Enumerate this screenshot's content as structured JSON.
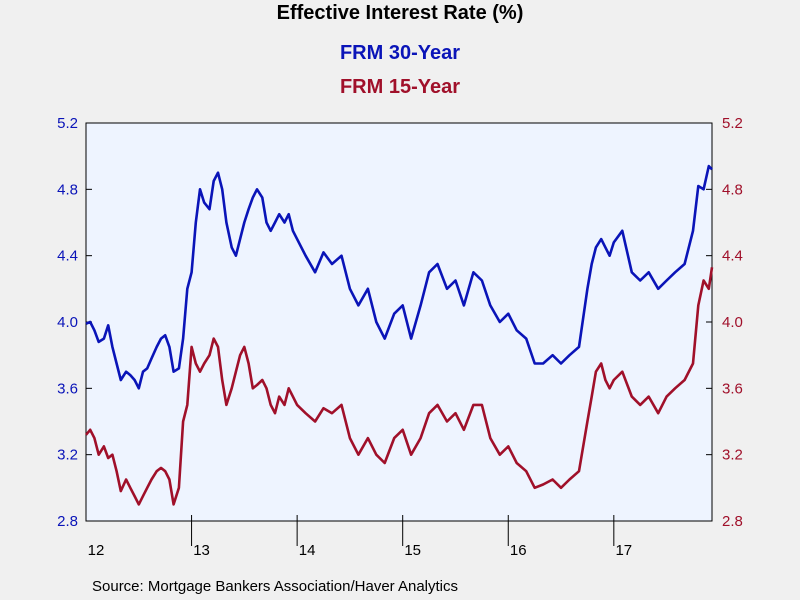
{
  "chart_data": {
    "type": "line",
    "title": "Effective Interest Rate (%)",
    "colors": {
      "background": "#f0f0f0",
      "plot_area": "#eef4ff",
      "series_1": "#0a14b8",
      "series_2": "#a0102a"
    },
    "ylim": [
      2.8,
      5.2
    ],
    "xlim": [
      2012.0,
      2017.93
    ],
    "y_ticks": [
      "2.8",
      "3.2",
      "3.6",
      "4.0",
      "4.4",
      "4.8",
      "5.2"
    ],
    "x_labels": [
      "12",
      "13",
      "14",
      "15",
      "16",
      "17"
    ],
    "grid": false,
    "legend": "title-area",
    "series": [
      {
        "name": "FRM 30-Year",
        "axis": "left",
        "x": [
          2012.0,
          2012.04,
          2012.08,
          2012.12,
          2012.17,
          2012.21,
          2012.25,
          2012.29,
          2012.33,
          2012.38,
          2012.42,
          2012.46,
          2012.5,
          2012.54,
          2012.58,
          2012.62,
          2012.67,
          2012.71,
          2012.75,
          2012.79,
          2012.83,
          2012.88,
          2012.92,
          2012.96,
          2013.0,
          2013.04,
          2013.08,
          2013.12,
          2013.17,
          2013.21,
          2013.25,
          2013.29,
          2013.33,
          2013.38,
          2013.42,
          2013.46,
          2013.5,
          2013.54,
          2013.58,
          2013.62,
          2013.67,
          2013.71,
          2013.75,
          2013.79,
          2013.83,
          2013.88,
          2013.92,
          2013.96,
          2014.0,
          2014.08,
          2014.17,
          2014.25,
          2014.33,
          2014.42,
          2014.5,
          2014.58,
          2014.67,
          2014.75,
          2014.83,
          2014.92,
          2015.0,
          2015.08,
          2015.17,
          2015.25,
          2015.33,
          2015.42,
          2015.5,
          2015.58,
          2015.67,
          2015.75,
          2015.83,
          2015.92,
          2016.0,
          2016.08,
          2016.17,
          2016.25,
          2016.33,
          2016.42,
          2016.5,
          2016.58,
          2016.67,
          2016.75,
          2016.79,
          2016.83,
          2016.88,
          2016.92,
          2016.96,
          2017.0,
          2017.08,
          2017.17,
          2017.25,
          2017.33,
          2017.42,
          2017.5,
          2017.58,
          2017.67,
          2017.75,
          2017.8,
          2017.85,
          2017.9,
          2017.93
        ],
        "values": [
          3.99,
          4.0,
          3.95,
          3.88,
          3.9,
          3.98,
          3.85,
          3.75,
          3.65,
          3.7,
          3.68,
          3.65,
          3.6,
          3.7,
          3.72,
          3.78,
          3.85,
          3.9,
          3.92,
          3.85,
          3.7,
          3.72,
          3.9,
          4.2,
          4.3,
          4.6,
          4.8,
          4.72,
          4.68,
          4.85,
          4.9,
          4.8,
          4.6,
          4.45,
          4.4,
          4.5,
          4.6,
          4.68,
          4.75,
          4.8,
          4.75,
          4.6,
          4.55,
          4.6,
          4.65,
          4.6,
          4.65,
          4.55,
          4.5,
          4.4,
          4.3,
          4.42,
          4.35,
          4.4,
          4.2,
          4.1,
          4.2,
          4.0,
          3.9,
          4.05,
          4.1,
          3.9,
          4.1,
          4.3,
          4.35,
          4.2,
          4.25,
          4.1,
          4.3,
          4.25,
          4.1,
          4.0,
          4.05,
          3.95,
          3.9,
          3.75,
          3.75,
          3.8,
          3.75,
          3.8,
          3.85,
          4.2,
          4.35,
          4.45,
          4.5,
          4.45,
          4.4,
          4.48,
          4.55,
          4.3,
          4.25,
          4.3,
          4.2,
          4.25,
          4.3,
          4.35,
          4.55,
          4.82,
          4.8,
          4.94,
          4.92
        ]
      },
      {
        "name": "FRM 15-Year",
        "axis": "right",
        "x": [
          2012.0,
          2012.04,
          2012.08,
          2012.12,
          2012.17,
          2012.21,
          2012.25,
          2012.29,
          2012.33,
          2012.38,
          2012.42,
          2012.46,
          2012.5,
          2012.54,
          2012.58,
          2012.62,
          2012.67,
          2012.71,
          2012.75,
          2012.79,
          2012.83,
          2012.88,
          2012.92,
          2012.96,
          2013.0,
          2013.04,
          2013.08,
          2013.12,
          2013.17,
          2013.21,
          2013.25,
          2013.29,
          2013.33,
          2013.38,
          2013.42,
          2013.46,
          2013.5,
          2013.54,
          2013.58,
          2013.62,
          2013.67,
          2013.71,
          2013.75,
          2013.79,
          2013.83,
          2013.88,
          2013.92,
          2013.96,
          2014.0,
          2014.08,
          2014.17,
          2014.25,
          2014.33,
          2014.42,
          2014.5,
          2014.58,
          2014.67,
          2014.75,
          2014.83,
          2014.92,
          2015.0,
          2015.08,
          2015.17,
          2015.25,
          2015.33,
          2015.42,
          2015.5,
          2015.58,
          2015.67,
          2015.75,
          2015.83,
          2015.92,
          2016.0,
          2016.08,
          2016.17,
          2016.25,
          2016.33,
          2016.42,
          2016.5,
          2016.58,
          2016.67,
          2016.75,
          2016.79,
          2016.83,
          2016.88,
          2016.92,
          2016.96,
          2017.0,
          2017.08,
          2017.17,
          2017.25,
          2017.33,
          2017.42,
          2017.5,
          2017.58,
          2017.67,
          2017.75,
          2017.8,
          2017.85,
          2017.9,
          2017.93
        ],
        "values": [
          3.32,
          3.35,
          3.3,
          3.2,
          3.25,
          3.18,
          3.2,
          3.1,
          2.98,
          3.05,
          3.0,
          2.95,
          2.9,
          2.95,
          3.0,
          3.05,
          3.1,
          3.12,
          3.1,
          3.05,
          2.9,
          3.0,
          3.4,
          3.5,
          3.85,
          3.75,
          3.7,
          3.75,
          3.8,
          3.9,
          3.85,
          3.65,
          3.5,
          3.6,
          3.7,
          3.8,
          3.85,
          3.75,
          3.6,
          3.62,
          3.65,
          3.6,
          3.5,
          3.45,
          3.55,
          3.5,
          3.6,
          3.55,
          3.5,
          3.45,
          3.4,
          3.48,
          3.45,
          3.5,
          3.3,
          3.2,
          3.3,
          3.2,
          3.15,
          3.3,
          3.35,
          3.2,
          3.3,
          3.45,
          3.5,
          3.4,
          3.45,
          3.35,
          3.5,
          3.5,
          3.3,
          3.2,
          3.25,
          3.15,
          3.1,
          3.0,
          3.02,
          3.05,
          3.0,
          3.05,
          3.1,
          3.4,
          3.55,
          3.7,
          3.75,
          3.65,
          3.6,
          3.65,
          3.7,
          3.55,
          3.5,
          3.55,
          3.45,
          3.55,
          3.6,
          3.65,
          3.75,
          4.1,
          4.25,
          4.2,
          4.33
        ]
      }
    ]
  },
  "source_text": "Source:  Mortgage Bankers Association/Haver Analytics"
}
